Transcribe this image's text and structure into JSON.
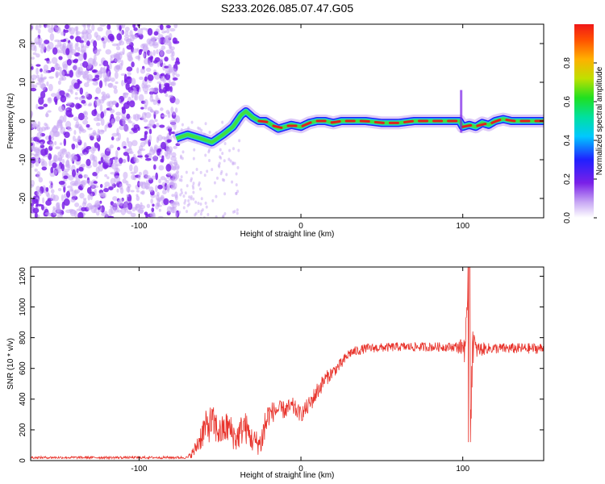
{
  "title": "S233.2026.085.07.47.G05",
  "colors": {
    "line": "#e8342c",
    "track_red": "#e02020",
    "track_green": "#40e040",
    "track_cyan": "#20d0d0",
    "track_blue": "#2020ff",
    "noise_dark": "#7a20e8",
    "noise_light": "#c8a8f4"
  },
  "colorbar": {
    "label": "Normalized spectral amplitude",
    "ticks": [
      0.0,
      0.2,
      0.4,
      0.6,
      0.8
    ],
    "tick_labels": [
      "0.0",
      "0.2",
      "0.4",
      "0.6",
      "0.8"
    ],
    "colormap": "rainbow (white-violet-blue-cyan-green-yellow-orange-red)",
    "range": [
      0,
      1
    ]
  },
  "chart_data": [
    {
      "type": "heatmap",
      "name": "spectrogram",
      "xlabel": "Height of straight line (km)",
      "ylabel": "Frequency (Hz)",
      "xlim": [
        -167,
        150
      ],
      "ylim": [
        -25,
        25
      ],
      "xticks": [
        -100,
        0,
        100
      ],
      "xtick_labels": [
        "-100",
        "0",
        "100"
      ],
      "yticks": [
        20,
        10,
        0,
        -10,
        -20
      ],
      "ytick_labels": [
        "20",
        "10",
        "0",
        "-10",
        "-20"
      ],
      "noise_region_x": [
        -167,
        -76
      ],
      "ridge": {
        "x": [
          -77,
          -70,
          -62,
          -55,
          -48,
          -42,
          -37,
          -34,
          -30,
          -26,
          -22,
          -18,
          -14,
          -10,
          -6,
          0,
          5,
          10,
          15,
          20,
          25,
          30,
          40,
          50,
          60,
          70,
          80,
          88,
          95,
          98,
          100,
          104,
          108,
          112,
          116,
          120,
          125,
          130,
          140,
          150
        ],
        "y": [
          -4.5,
          -3.5,
          -4.5,
          -5.5,
          -3.5,
          -1.5,
          1.5,
          2.5,
          1.0,
          0.0,
          0.0,
          -1.0,
          -2.0,
          -1.5,
          -1.0,
          -1.5,
          -0.5,
          0.0,
          0.0,
          -0.5,
          0.0,
          0.0,
          0.0,
          -0.5,
          -0.5,
          0.0,
          0.0,
          0.0,
          0.0,
          0.0,
          -1.5,
          -1.0,
          -1.5,
          -0.5,
          -1.0,
          0.0,
          0.5,
          0.0,
          0.0,
          0.0
        ]
      },
      "spike": {
        "x": 99,
        "y_range": [
          -3,
          8
        ]
      }
    },
    {
      "type": "line",
      "name": "snr",
      "xlabel": "Height of straight line (km)",
      "ylabel": "SNR (10 * v/v)",
      "xlim": [
        -167,
        150
      ],
      "ylim": [
        0,
        1260
      ],
      "xticks": [
        -100,
        0,
        100
      ],
      "xtick_labels": [
        "-100",
        "0",
        "100"
      ],
      "yticks": [
        0,
        200,
        400,
        600,
        800,
        1000,
        1200
      ],
      "ytick_labels": [
        "0",
        "200",
        "400",
        "600",
        "800",
        "1000",
        "1200"
      ],
      "envelope": {
        "x": [
          -167,
          -70,
          -66,
          -60,
          -55,
          -50,
          -45,
          -40,
          -35,
          -30,
          -25,
          -22,
          -20,
          -15,
          -10,
          -5,
          0,
          5,
          10,
          15,
          20,
          25,
          30,
          40,
          60,
          80,
          95,
          100,
          103,
          104,
          105,
          106,
          108,
          115,
          130,
          150
        ],
        "y": [
          20,
          20,
          60,
          200,
          250,
          180,
          220,
          140,
          230,
          130,
          110,
          230,
          300,
          330,
          330,
          350,
          300,
          360,
          450,
          530,
          580,
          630,
          700,
          730,
          740,
          740,
          740,
          740,
          800,
          900,
          300,
          800,
          720,
          730,
          730,
          730
        ],
        "noise": [
          8,
          8,
          40,
          110,
          120,
          100,
          110,
          90,
          110,
          80,
          80,
          150,
          80,
          60,
          60,
          60,
          50,
          60,
          60,
          50,
          40,
          40,
          35,
          30,
          30,
          30,
          30,
          60,
          250,
          300,
          200,
          200,
          60,
          35,
          35,
          35
        ]
      }
    }
  ]
}
